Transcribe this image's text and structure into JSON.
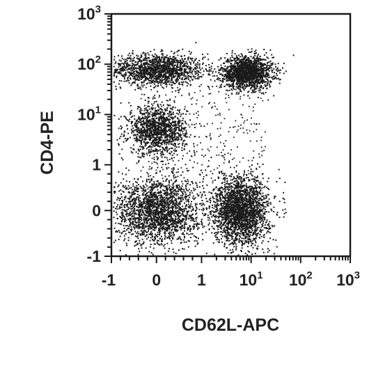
{
  "chart_data": {
    "type": "scatter",
    "title": "",
    "xlabel": "CD62L-APC",
    "ylabel": "CD4-PE",
    "x_scale": "biexponential",
    "y_scale": "biexponential",
    "xlim": [
      -1,
      1000
    ],
    "ylim": [
      -1,
      1000
    ],
    "x_ticks": [
      {
        "value": -1,
        "base": "-1",
        "exp": ""
      },
      {
        "value": 0,
        "base": "0",
        "exp": ""
      },
      {
        "value": 1,
        "base": "1",
        "exp": ""
      },
      {
        "value": 10,
        "base": "10",
        "exp": "1"
      },
      {
        "value": 100,
        "base": "10",
        "exp": "2"
      },
      {
        "value": 1000,
        "base": "10",
        "exp": "3"
      }
    ],
    "y_ticks": [
      {
        "value": -1,
        "base": "-1",
        "exp": ""
      },
      {
        "value": 0,
        "base": "0",
        "exp": ""
      },
      {
        "value": 1,
        "base": "1",
        "exp": ""
      },
      {
        "value": 10,
        "base": "10",
        "exp": "1"
      },
      {
        "value": 100,
        "base": "10",
        "exp": "2"
      },
      {
        "value": 1000,
        "base": "10",
        "exp": "3"
      }
    ],
    "grid": false,
    "point_color": "#1a1a1a",
    "populations": [
      {
        "x_center": 0,
        "y_center": 80,
        "x_spread": 0.8,
        "y_spread": 20,
        "events": 1400
      },
      {
        "x_center": 8,
        "y_center": 70,
        "x_spread": 8,
        "y_spread": 18,
        "events": 1600
      },
      {
        "x_center": 0,
        "y_center": 5,
        "x_spread": 0.4,
        "y_spread": 4,
        "events": 1200
      },
      {
        "x_center": 0,
        "y_center": 0,
        "x_spread": 0.7,
        "y_spread": 0.5,
        "events": 2000
      },
      {
        "x_center": 6,
        "y_center": 0,
        "x_spread": 7,
        "y_spread": 0.5,
        "events": 2200
      }
    ]
  }
}
